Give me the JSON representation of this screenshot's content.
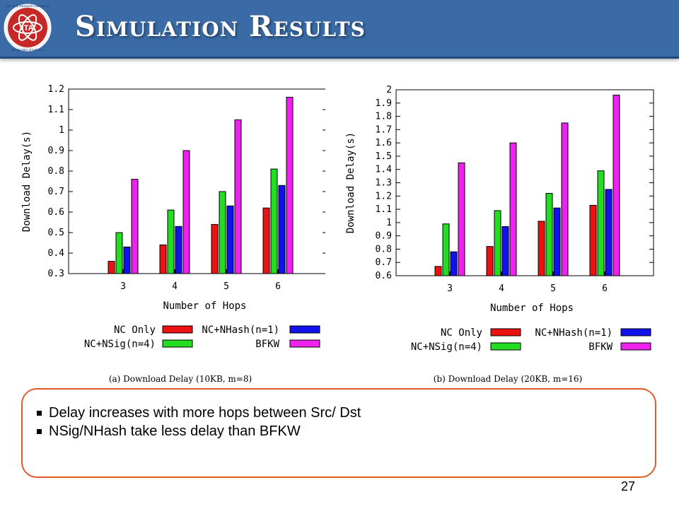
{
  "slide": {
    "title": "Simulation Results",
    "page_number": "27",
    "logo": {
      "center_text": "ITA",
      "ring_top": "US Army Research Laboratory",
      "ring_bottom": "UK Ministry of Defence"
    }
  },
  "bullets": [
    "Delay increases with more hops between Src/ Dst",
    "NSig/NHash take less delay than BFKW"
  ],
  "colors": {
    "header": "#3a6ba6",
    "box_border": "#e05a2a"
  },
  "chart_data": [
    {
      "type": "bar",
      "caption": "(a) Download Delay (10KB, m=8)",
      "xlabel": "Number of Hops",
      "ylabel": "Download Delay(s)",
      "categories": [
        "3",
        "4",
        "5",
        "6"
      ],
      "ylim": [
        0.3,
        1.2
      ],
      "yticks": [
        0.3,
        0.4,
        0.5,
        0.6,
        0.7,
        0.8,
        0.9,
        1,
        1.1,
        1.2
      ],
      "ytick_labels": [
        "0.3",
        "0.4",
        "0.5",
        "0.6",
        "0.7",
        "0.8",
        "0.9",
        "1",
        "1.1",
        "1.2"
      ],
      "legend_placement": "below",
      "series": [
        {
          "name": "NC Only",
          "color": "#ee1111",
          "values": [
            0.36,
            0.44,
            0.54,
            0.62
          ]
        },
        {
          "name": "NC+NSig(n=4)",
          "color": "#22dd22",
          "values": [
            0.5,
            0.61,
            0.7,
            0.81
          ]
        },
        {
          "name": "NC+NHash(n=1)",
          "color": "#1111ee",
          "values": [
            0.43,
            0.53,
            0.63,
            0.73
          ]
        },
        {
          "name": "BFKW",
          "color": "#ee22ee",
          "values": [
            0.76,
            0.9,
            1.05,
            1.16
          ]
        }
      ]
    },
    {
      "type": "bar",
      "caption": "(b) Download Delay (20KB, m=16)",
      "xlabel": "Number of Hops",
      "ylabel": "Download Delay(s)",
      "categories": [
        "3",
        "4",
        "5",
        "6"
      ],
      "ylim": [
        0.6,
        2
      ],
      "yticks": [
        0.6,
        0.7,
        0.8,
        0.9,
        1,
        1.1,
        1.2,
        1.3,
        1.4,
        1.5,
        1.6,
        1.7,
        1.8,
        1.9,
        2
      ],
      "ytick_labels": [
        "0.6",
        "0.7",
        "0.8",
        "0.9",
        "1",
        "1.1",
        "1.2",
        "1.3",
        "1.4",
        "1.5",
        "1.6",
        "1.7",
        "1.8",
        "1.9",
        "2"
      ],
      "legend_placement": "below",
      "series": [
        {
          "name": "NC Only",
          "color": "#ee1111",
          "values": [
            0.67,
            0.82,
            1.01,
            1.13
          ]
        },
        {
          "name": "NC+NSig(n=4)",
          "color": "#22dd22",
          "values": [
            0.99,
            1.09,
            1.22,
            1.39
          ]
        },
        {
          "name": "NC+NHash(n=1)",
          "color": "#1111ee",
          "values": [
            0.78,
            0.97,
            1.11,
            1.25
          ]
        },
        {
          "name": "BFKW",
          "color": "#ee22ee",
          "values": [
            1.45,
            1.6,
            1.75,
            1.96
          ]
        }
      ]
    }
  ]
}
